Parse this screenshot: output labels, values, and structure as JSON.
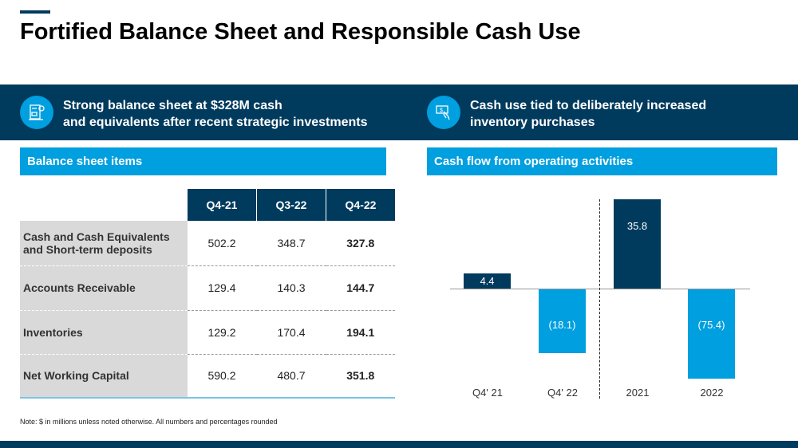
{
  "title": "Fortified Balance Sheet and Responsible Cash Use",
  "banner": {
    "left_line1": "Strong balance sheet at $328M cash",
    "left_line2": "and equivalents after recent strategic investments",
    "right_line1": "Cash use tied to deliberately increased",
    "right_line2": "inventory purchases",
    "left_icon": "balance-sheet-icon",
    "right_icon": "hand-cash-icon"
  },
  "sections": {
    "left": "Balance sheet items",
    "right": "Cash flow from operating activities"
  },
  "table": {
    "headers": [
      "Q4-21",
      "Q3-22",
      "Q4-22"
    ],
    "rows": [
      {
        "label": "Cash and Cash Equivalents and Short-term deposits",
        "values": [
          "502.2",
          "348.7",
          "327.8"
        ]
      },
      {
        "label": "Accounts Receivable",
        "values": [
          "129.4",
          "140.3",
          "144.7"
        ]
      },
      {
        "label": "Inventories",
        "values": [
          "129.2",
          "170.4",
          "194.1"
        ]
      },
      {
        "label": "Net Working Capital",
        "values": [
          "590.2",
          "480.7",
          "351.8"
        ]
      }
    ]
  },
  "note": "Note: $ in millions unless noted otherwise. All numbers and percentages rounded",
  "colors": {
    "navy": "#003a5d",
    "blue": "#009fdf"
  },
  "chart_data": {
    "type": "bar",
    "title": "Cash flow from operating activities",
    "categories": [
      "Q4' 21",
      "Q4' 22",
      "2021",
      "2022"
    ],
    "values": [
      4.4,
      -18.1,
      35.8,
      -75.4
    ],
    "labels": [
      "4.4",
      "(18.1)",
      "35.8",
      "(75.4)"
    ],
    "groups": [
      "quarter",
      "quarter",
      "year",
      "year"
    ],
    "xlabel": "",
    "ylabel": ""
  }
}
